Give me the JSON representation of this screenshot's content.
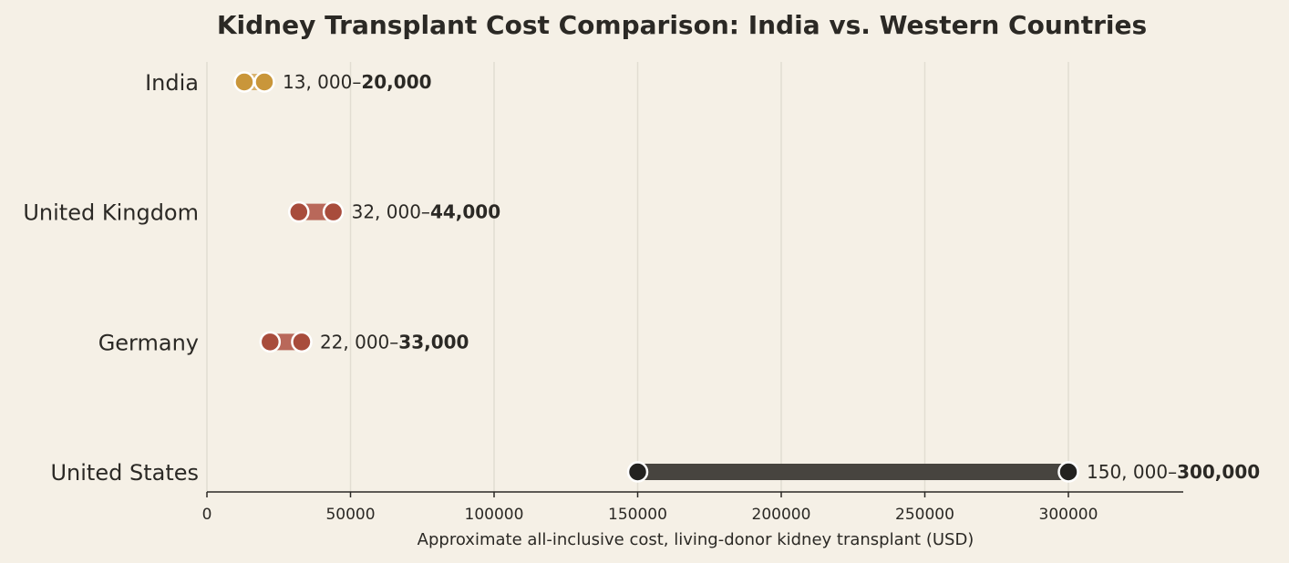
{
  "chart_data": {
    "type": "dumbbell",
    "title": "Kidney Transplant Cost Comparison: India vs. Western Countries",
    "xlabel": "Approximate all-inclusive cost, living-donor kidney transplant (USD)",
    "ylabel": "",
    "xlim": [
      0,
      340000
    ],
    "xticks": [
      0,
      50000,
      100000,
      150000,
      200000,
      250000,
      300000
    ],
    "xtick_labels": [
      "0",
      "50000",
      "100000",
      "150000",
      "200000",
      "250000",
      "300000"
    ],
    "grid": "vertical",
    "categories": [
      "India",
      "United Kingdom",
      "Germany",
      "United States"
    ],
    "ranges": [
      {
        "category": "India",
        "low": 13000,
        "high": 20000,
        "low_label": "13, 000–",
        "high_label": "20,000",
        "color": "#c9963a",
        "bar_color": "#d9b36e"
      },
      {
        "category": "United Kingdom",
        "low": 32000,
        "high": 44000,
        "low_label": "32, 000–",
        "high_label": "44,000",
        "color": "#a84c3c",
        "bar_color": "#b9685a"
      },
      {
        "category": "Germany",
        "low": 22000,
        "high": 33000,
        "low_label": "22, 000–",
        "high_label": "33,000",
        "color": "#a84c3c",
        "bar_color": "#b9685a"
      },
      {
        "category": "United States",
        "low": 150000,
        "high": 300000,
        "low_label": "150, 000–",
        "high_label": "300,000",
        "color": "#232220",
        "bar_color": "#47443f"
      }
    ]
  }
}
